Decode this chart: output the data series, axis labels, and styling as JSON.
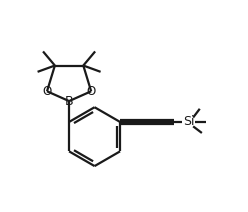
{
  "bg_color": "#ffffff",
  "line_color": "#1a1a1a",
  "line_width": 1.6,
  "figsize": [
    2.48,
    2.12
  ],
  "dpi": 100,
  "xlim": [
    0,
    10
  ],
  "ylim": [
    0,
    8.5
  ]
}
